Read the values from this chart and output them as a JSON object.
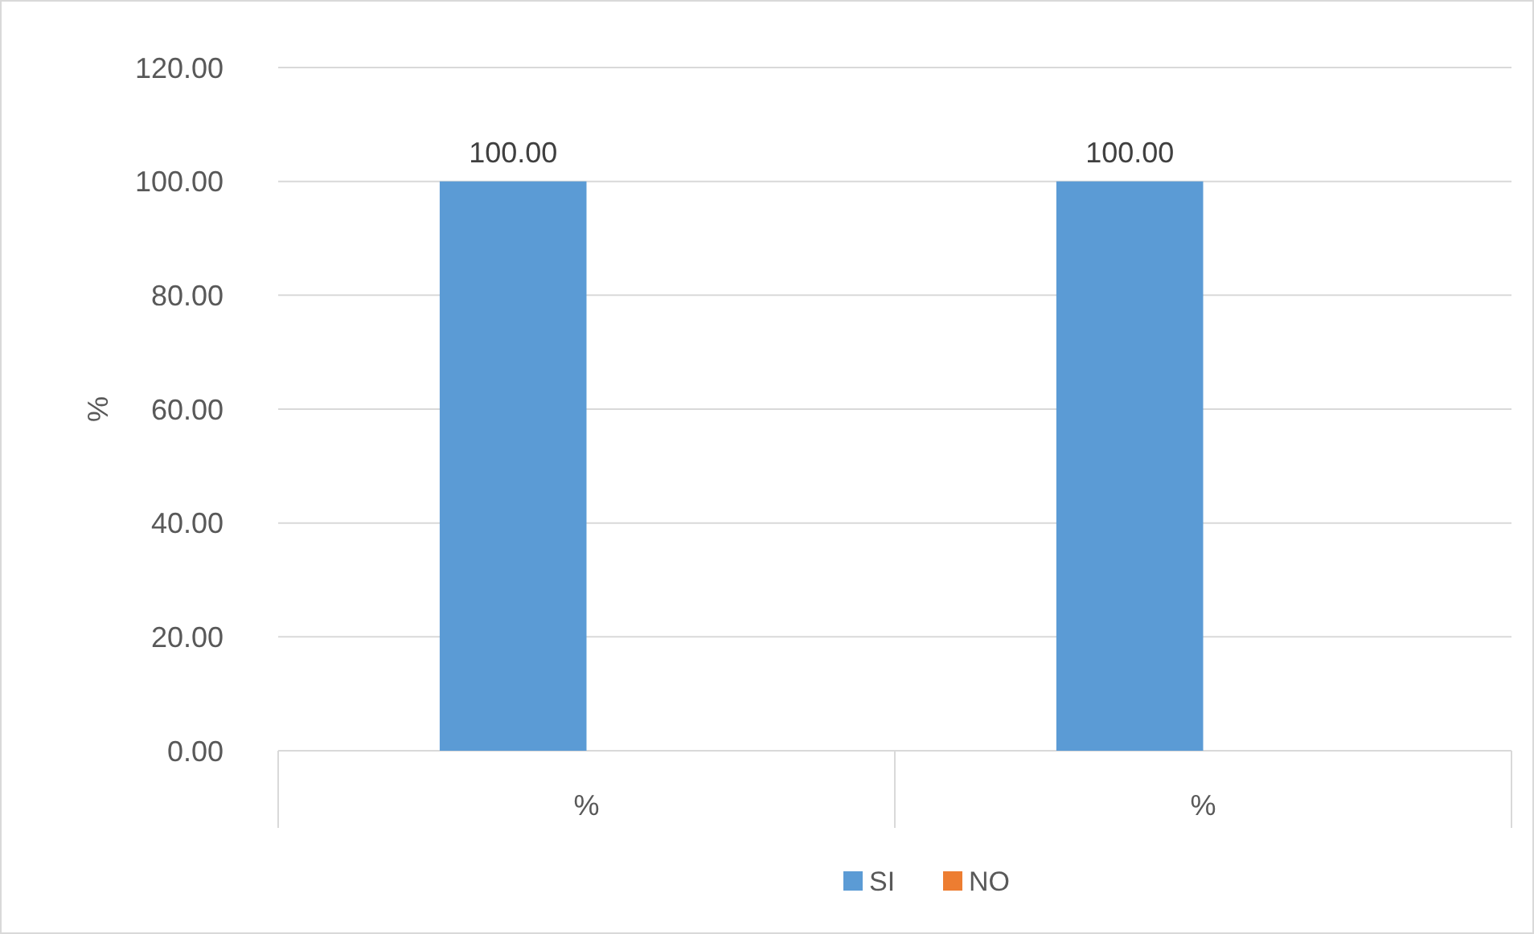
{
  "chart_data": {
    "type": "bar",
    "ylabel": "%",
    "categories": [
      "%",
      "%"
    ],
    "series": [
      {
        "name": "SI",
        "color": "#5b9bd5",
        "values": [
          100,
          100
        ],
        "value_labels": [
          "100.00",
          "100.00"
        ]
      },
      {
        "name": "NO",
        "color": "#ed7d31",
        "values": [
          0,
          0
        ],
        "value_labels": [
          null,
          null
        ]
      }
    ],
    "ylim": [
      0,
      120
    ],
    "yticks": [
      {
        "value": 0,
        "label": "0.00"
      },
      {
        "value": 20,
        "label": "20.00"
      },
      {
        "value": 40,
        "label": "40.00"
      },
      {
        "value": 60,
        "label": "60.00"
      },
      {
        "value": 80,
        "label": "80.00"
      },
      {
        "value": 100,
        "label": "100.00"
      },
      {
        "value": 120,
        "label": "120.00"
      }
    ],
    "grid": "y",
    "legend": "bottom"
  }
}
